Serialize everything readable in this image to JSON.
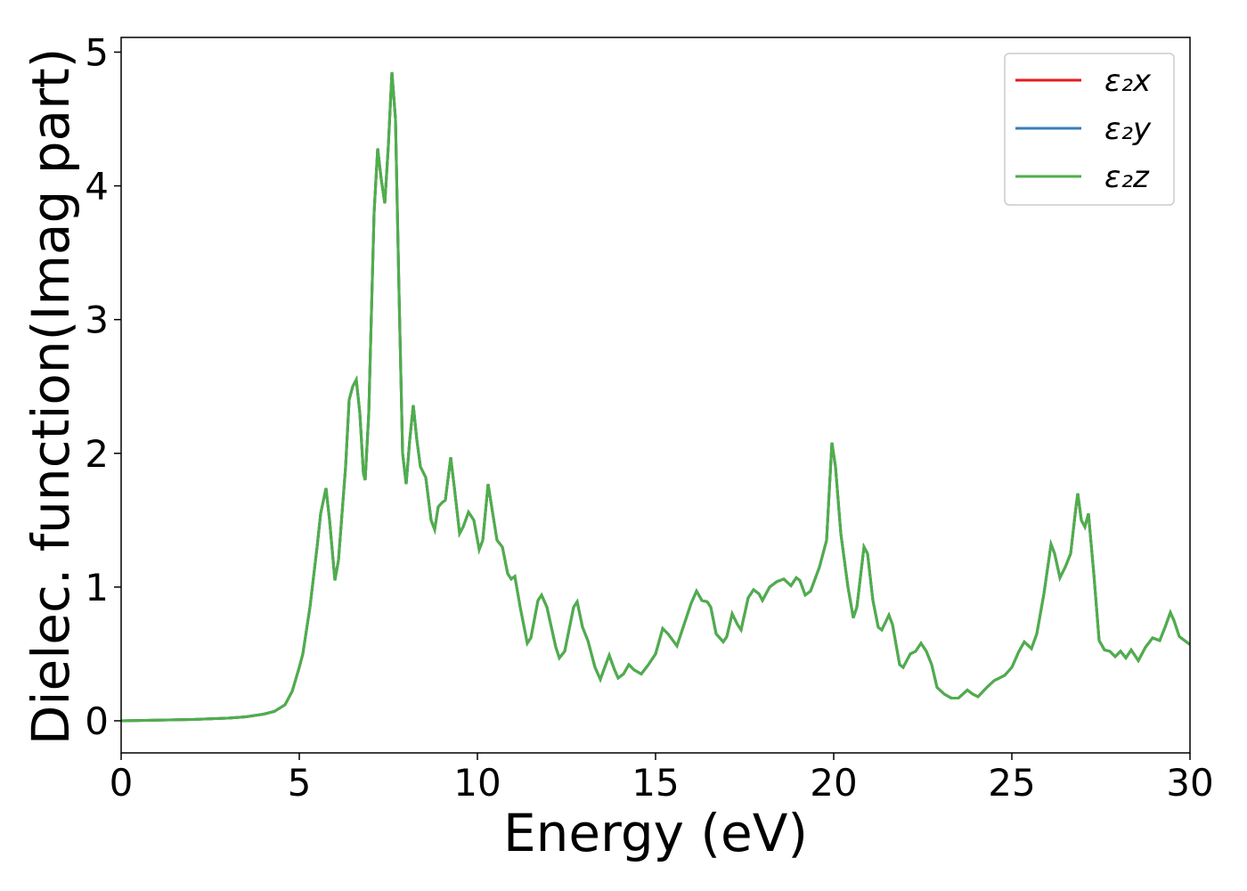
{
  "chart_data": {
    "type": "line",
    "xlabel": "Energy (eV)",
    "ylabel": "Dielec. function(Imag part)",
    "xlim": [
      0,
      30
    ],
    "xticks": [
      0,
      5,
      10,
      15,
      20,
      25,
      30
    ],
    "ylim": [
      -0.24,
      5.11
    ],
    "yticks": [
      0,
      1,
      2,
      3,
      4,
      5
    ],
    "legend": "upper right",
    "x": [
      0,
      1,
      2,
      3,
      3.5,
      4,
      4.3,
      4.6,
      4.8,
      5.0,
      5.1,
      5.3,
      5.5,
      5.6,
      5.75,
      5.85,
      6.0,
      6.1,
      6.3,
      6.4,
      6.5,
      6.6,
      6.7,
      6.8,
      6.85,
      6.95,
      7.1,
      7.2,
      7.3,
      7.4,
      7.5,
      7.6,
      7.7,
      7.8,
      7.9,
      8.0,
      8.1,
      8.2,
      8.3,
      8.4,
      8.55,
      8.7,
      8.8,
      8.9,
      9.0,
      9.1,
      9.25,
      9.35,
      9.5,
      9.6,
      9.75,
      9.9,
      10.05,
      10.15,
      10.3,
      10.4,
      10.55,
      10.7,
      10.85,
      10.95,
      11.05,
      11.2,
      11.4,
      11.5,
      11.7,
      11.8,
      11.95,
      12.2,
      12.3,
      12.45,
      12.7,
      12.8,
      12.95,
      13.1,
      13.3,
      13.45,
      13.6,
      13.7,
      13.85,
      13.95,
      14.1,
      14.25,
      14.4,
      14.6,
      14.8,
      15.0,
      15.2,
      15.35,
      15.6,
      15.8,
      16.0,
      16.15,
      16.3,
      16.45,
      16.55,
      16.7,
      16.9,
      17.0,
      17.15,
      17.3,
      17.4,
      17.6,
      17.75,
      17.9,
      18.0,
      18.2,
      18.4,
      18.6,
      18.8,
      18.95,
      19.05,
      19.2,
      19.35,
      19.6,
      19.8,
      19.95,
      20.05,
      20.2,
      20.4,
      20.55,
      20.65,
      20.85,
      20.95,
      21.1,
      21.25,
      21.35,
      21.55,
      21.65,
      21.85,
      21.95,
      22.15,
      22.3,
      22.45,
      22.6,
      22.75,
      22.9,
      23.1,
      23.3,
      23.5,
      23.75,
      23.9,
      24.05,
      24.3,
      24.5,
      24.8,
      25.0,
      25.2,
      25.35,
      25.55,
      25.7,
      25.9,
      26.1,
      26.2,
      26.35,
      26.5,
      26.65,
      26.8,
      26.85,
      26.95,
      27.05,
      27.15,
      27.3,
      27.45,
      27.6,
      27.75,
      27.9,
      28.05,
      28.2,
      28.35,
      28.55,
      28.75,
      28.95,
      29.15,
      29.3,
      29.45,
      29.55,
      29.7,
      29.85,
      30
    ],
    "series": [
      {
        "name": "ε₂x",
        "color": "#e41a1c",
        "values": [
          0,
          0.005,
          0.01,
          0.02,
          0.03,
          0.05,
          0.07,
          0.12,
          0.22,
          0.4,
          0.5,
          0.85,
          1.3,
          1.55,
          1.74,
          1.5,
          1.05,
          1.2,
          1.9,
          2.4,
          2.5,
          2.55,
          2.3,
          1.85,
          1.8,
          2.3,
          3.8,
          4.28,
          4.05,
          3.87,
          4.3,
          4.85,
          4.5,
          3.2,
          2.0,
          1.77,
          2.1,
          2.36,
          2.1,
          1.9,
          1.82,
          1.5,
          1.43,
          1.6,
          1.63,
          1.65,
          1.97,
          1.75,
          1.4,
          1.45,
          1.56,
          1.5,
          1.28,
          1.35,
          1.77,
          1.6,
          1.35,
          1.3,
          1.1,
          1.06,
          1.08,
          0.85,
          0.58,
          0.62,
          0.9,
          0.94,
          0.85,
          0.55,
          0.47,
          0.52,
          0.85,
          0.89,
          0.7,
          0.6,
          0.4,
          0.31,
          0.42,
          0.49,
          0.38,
          0.32,
          0.35,
          0.42,
          0.38,
          0.35,
          0.42,
          0.5,
          0.69,
          0.65,
          0.56,
          0.72,
          0.88,
          0.97,
          0.9,
          0.89,
          0.85,
          0.65,
          0.59,
          0.63,
          0.8,
          0.72,
          0.68,
          0.92,
          0.98,
          0.95,
          0.9,
          1.0,
          1.04,
          1.06,
          1.01,
          1.07,
          1.05,
          0.94,
          0.97,
          1.15,
          1.35,
          2.08,
          1.9,
          1.4,
          1.0,
          0.77,
          0.85,
          1.3,
          1.25,
          0.9,
          0.7,
          0.68,
          0.79,
          0.72,
          0.42,
          0.4,
          0.5,
          0.52,
          0.58,
          0.52,
          0.42,
          0.25,
          0.2,
          0.17,
          0.17,
          0.23,
          0.2,
          0.18,
          0.25,
          0.3,
          0.34,
          0.4,
          0.52,
          0.59,
          0.54,
          0.65,
          0.95,
          1.32,
          1.25,
          1.07,
          1.15,
          1.25,
          1.6,
          1.7,
          1.5,
          1.45,
          1.55,
          1.1,
          0.6,
          0.53,
          0.52,
          0.48,
          0.52,
          0.47,
          0.53,
          0.45,
          0.55,
          0.62,
          0.6,
          0.7,
          0.81,
          0.75,
          0.63,
          0.6,
          0.57
        ]
      },
      {
        "name": "ε₂y",
        "color": "#377eb8",
        "values": [
          0,
          0.005,
          0.01,
          0.02,
          0.03,
          0.05,
          0.07,
          0.12,
          0.22,
          0.4,
          0.5,
          0.85,
          1.3,
          1.55,
          1.74,
          1.5,
          1.05,
          1.2,
          1.9,
          2.4,
          2.5,
          2.55,
          2.3,
          1.85,
          1.8,
          2.3,
          3.8,
          4.28,
          4.05,
          3.87,
          4.3,
          4.85,
          4.5,
          3.2,
          2.0,
          1.77,
          2.1,
          2.36,
          2.1,
          1.9,
          1.82,
          1.5,
          1.43,
          1.6,
          1.63,
          1.65,
          1.97,
          1.75,
          1.4,
          1.45,
          1.56,
          1.5,
          1.28,
          1.35,
          1.77,
          1.6,
          1.35,
          1.3,
          1.1,
          1.06,
          1.08,
          0.85,
          0.58,
          0.62,
          0.9,
          0.94,
          0.85,
          0.55,
          0.47,
          0.52,
          0.85,
          0.89,
          0.7,
          0.6,
          0.4,
          0.31,
          0.42,
          0.49,
          0.38,
          0.32,
          0.35,
          0.42,
          0.38,
          0.35,
          0.42,
          0.5,
          0.69,
          0.65,
          0.56,
          0.72,
          0.88,
          0.97,
          0.9,
          0.89,
          0.85,
          0.65,
          0.59,
          0.63,
          0.8,
          0.72,
          0.68,
          0.92,
          0.98,
          0.95,
          0.9,
          1.0,
          1.04,
          1.06,
          1.01,
          1.07,
          1.05,
          0.94,
          0.97,
          1.15,
          1.35,
          2.08,
          1.9,
          1.4,
          1.0,
          0.77,
          0.85,
          1.3,
          1.25,
          0.9,
          0.7,
          0.68,
          0.79,
          0.72,
          0.42,
          0.4,
          0.5,
          0.52,
          0.58,
          0.52,
          0.42,
          0.25,
          0.2,
          0.17,
          0.17,
          0.23,
          0.2,
          0.18,
          0.25,
          0.3,
          0.34,
          0.4,
          0.52,
          0.59,
          0.54,
          0.65,
          0.95,
          1.32,
          1.25,
          1.07,
          1.15,
          1.25,
          1.6,
          1.7,
          1.5,
          1.45,
          1.55,
          1.1,
          0.6,
          0.53,
          0.52,
          0.48,
          0.52,
          0.47,
          0.53,
          0.45,
          0.55,
          0.62,
          0.6,
          0.7,
          0.81,
          0.75,
          0.63,
          0.6,
          0.57
        ]
      },
      {
        "name": "ε₂z",
        "color": "#4daf4a",
        "values": [
          0,
          0.005,
          0.01,
          0.02,
          0.03,
          0.05,
          0.07,
          0.12,
          0.22,
          0.4,
          0.5,
          0.85,
          1.3,
          1.55,
          1.74,
          1.5,
          1.05,
          1.2,
          1.9,
          2.4,
          2.5,
          2.55,
          2.3,
          1.85,
          1.8,
          2.3,
          3.8,
          4.28,
          4.05,
          3.87,
          4.3,
          4.85,
          4.5,
          3.2,
          2.0,
          1.77,
          2.1,
          2.36,
          2.1,
          1.9,
          1.82,
          1.5,
          1.43,
          1.6,
          1.63,
          1.65,
          1.97,
          1.75,
          1.4,
          1.45,
          1.56,
          1.5,
          1.28,
          1.35,
          1.77,
          1.6,
          1.35,
          1.3,
          1.1,
          1.06,
          1.08,
          0.85,
          0.58,
          0.62,
          0.9,
          0.94,
          0.85,
          0.55,
          0.47,
          0.52,
          0.85,
          0.89,
          0.7,
          0.6,
          0.4,
          0.31,
          0.42,
          0.49,
          0.38,
          0.32,
          0.35,
          0.42,
          0.38,
          0.35,
          0.42,
          0.5,
          0.69,
          0.65,
          0.56,
          0.72,
          0.88,
          0.97,
          0.9,
          0.89,
          0.85,
          0.65,
          0.59,
          0.63,
          0.8,
          0.72,
          0.68,
          0.92,
          0.98,
          0.95,
          0.9,
          1.0,
          1.04,
          1.06,
          1.01,
          1.07,
          1.05,
          0.94,
          0.97,
          1.15,
          1.35,
          2.08,
          1.9,
          1.4,
          1.0,
          0.77,
          0.85,
          1.3,
          1.25,
          0.9,
          0.7,
          0.68,
          0.79,
          0.72,
          0.42,
          0.4,
          0.5,
          0.52,
          0.58,
          0.52,
          0.42,
          0.25,
          0.2,
          0.17,
          0.17,
          0.23,
          0.2,
          0.18,
          0.25,
          0.3,
          0.34,
          0.4,
          0.52,
          0.59,
          0.54,
          0.65,
          0.95,
          1.32,
          1.25,
          1.07,
          1.15,
          1.25,
          1.6,
          1.7,
          1.5,
          1.45,
          1.55,
          1.1,
          0.6,
          0.53,
          0.52,
          0.48,
          0.52,
          0.47,
          0.53,
          0.45,
          0.55,
          0.62,
          0.6,
          0.7,
          0.81,
          0.75,
          0.63,
          0.6,
          0.57
        ]
      }
    ]
  }
}
